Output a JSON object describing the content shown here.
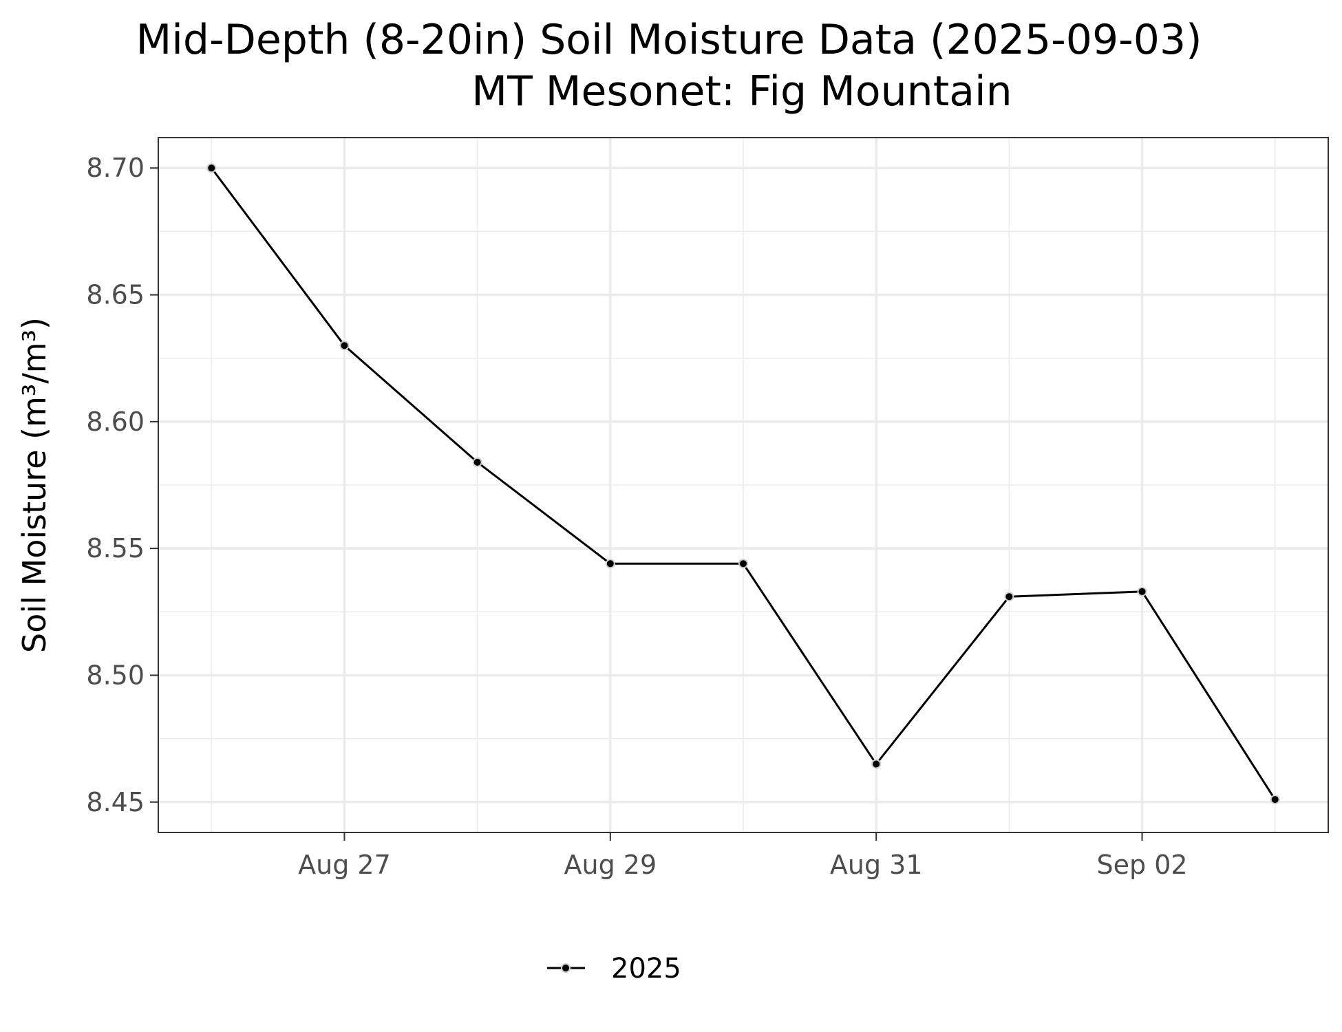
{
  "chart_data": {
    "type": "line",
    "title": "Mid-Depth (8-20in) Soil Moisture Data (2025-09-03)",
    "subtitle": "MT Mesonet: Fig Mountain",
    "xlabel": "",
    "ylabel": "Soil Moisture (m³/m³)",
    "x": [
      "2025-08-26",
      "2025-08-27",
      "2025-08-28",
      "2025-08-29",
      "2025-08-30",
      "2025-08-31",
      "2025-09-01",
      "2025-09-02",
      "2025-09-03"
    ],
    "x_ticks": [
      {
        "date": "2025-08-27",
        "label": "Aug 27"
      },
      {
        "date": "2025-08-29",
        "label": "Aug 29"
      },
      {
        "date": "2025-08-31",
        "label": "Aug 31"
      },
      {
        "date": "2025-09-02",
        "label": "Sep 02"
      }
    ],
    "xlim": [
      "2025-08-25T14:24",
      "2025-09-03T09:36"
    ],
    "y_ticks": [
      {
        "value": 8.45,
        "label": "8.45"
      },
      {
        "value": 8.5,
        "label": "8.50"
      },
      {
        "value": 8.55,
        "label": "8.55"
      },
      {
        "value": 8.6,
        "label": "8.60"
      },
      {
        "value": 8.65,
        "label": "8.65"
      },
      {
        "value": 8.7,
        "label": "8.70"
      }
    ],
    "ylim": [
      8.438,
      8.712
    ],
    "grid": true,
    "legend_position": "bottom",
    "series": [
      {
        "name": "2025",
        "color": "#000000",
        "values": [
          8.7,
          8.63,
          8.584,
          8.544,
          8.544,
          8.465,
          8.531,
          8.533,
          8.451
        ]
      }
    ]
  }
}
